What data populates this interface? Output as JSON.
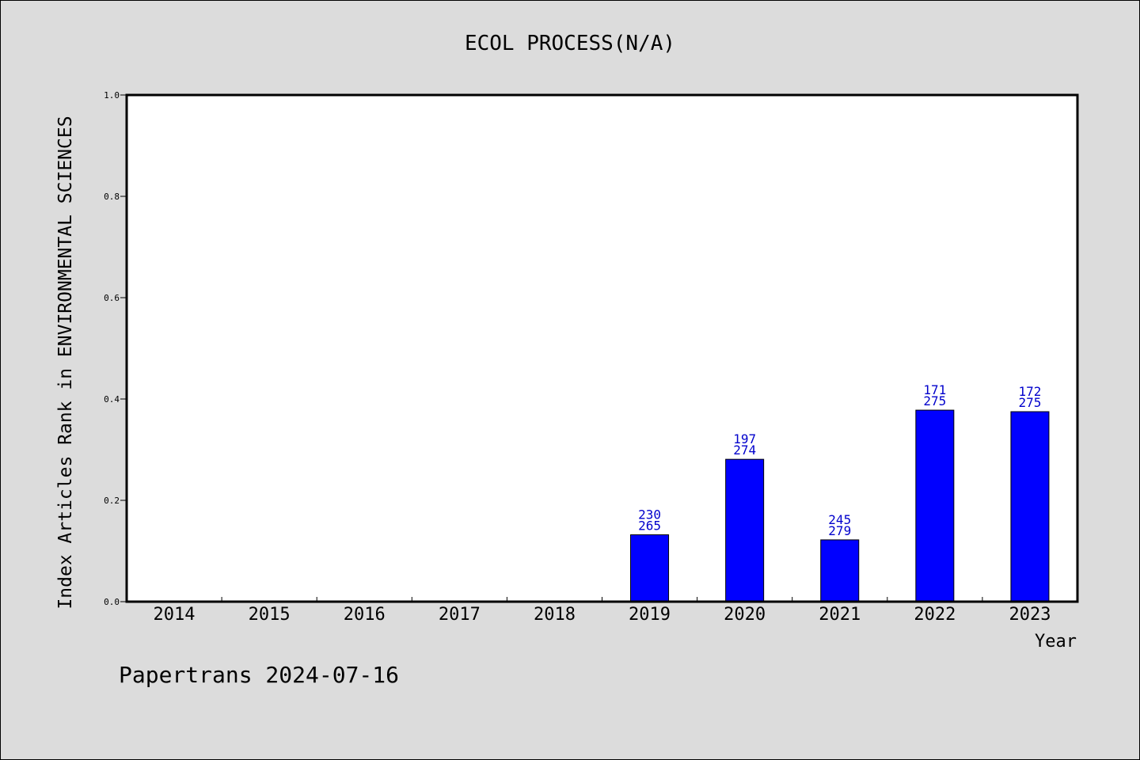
{
  "chart_data": {
    "type": "bar",
    "title": "ECOL PROCESS(N/A)",
    "xlabel": "Year",
    "ylabel": "Index Articles Rank in ENVIRONMENTAL SCIENCES",
    "footer": "Papertrans 2024-07-16",
    "ylim": [
      0,
      1.0
    ],
    "yticks": [
      "0.0",
      "0.2",
      "0.4",
      "0.6",
      "0.8",
      "1.0"
    ],
    "categories": [
      "2014",
      "2015",
      "2016",
      "2017",
      "2018",
      "2019",
      "2020",
      "2021",
      "2022",
      "2023"
    ],
    "values": [
      null,
      null,
      null,
      null,
      null,
      0.132,
      0.281,
      0.122,
      0.378,
      0.375
    ],
    "label_top": [
      null,
      null,
      null,
      null,
      null,
      "230",
      "197",
      "245",
      "171",
      "172"
    ],
    "label_bottom": [
      null,
      null,
      null,
      null,
      null,
      "265",
      "274",
      "279",
      "275",
      "275"
    ],
    "grid": false,
    "colors": {
      "background": "#dcdcdc",
      "plot_background": "#ffffff",
      "bar_fill": "#0000ff",
      "bar_stroke": "#000000",
      "data_label": "#0000cc",
      "text": "#000000"
    }
  }
}
